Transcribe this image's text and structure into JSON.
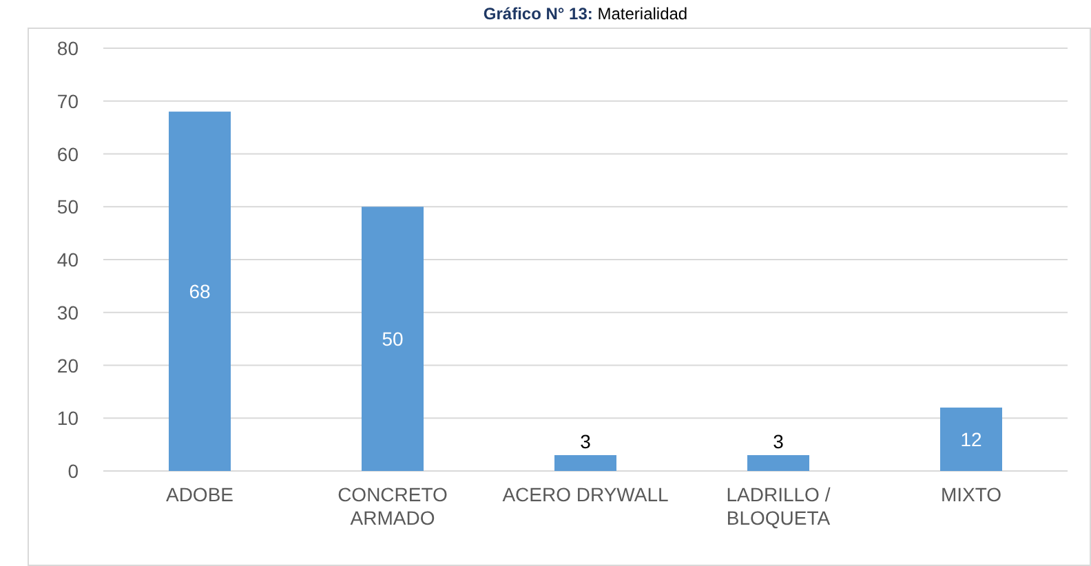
{
  "chart_data": {
    "type": "bar",
    "title": "Gráfico N° 13: Materialidad",
    "categories": [
      "ADOBE",
      "CONCRETO ARMADO",
      "ACERO DRYWALL",
      "LADRILLO / BLOQUETA",
      "MIXTO"
    ],
    "values": [
      68,
      50,
      3,
      3,
      12
    ],
    "color": "#5b9bd5",
    "ylim": [
      0,
      80
    ],
    "yticks": [
      0,
      10,
      20,
      30,
      40,
      50,
      60,
      70,
      80
    ],
    "grid": "y",
    "data_labels": true
  }
}
